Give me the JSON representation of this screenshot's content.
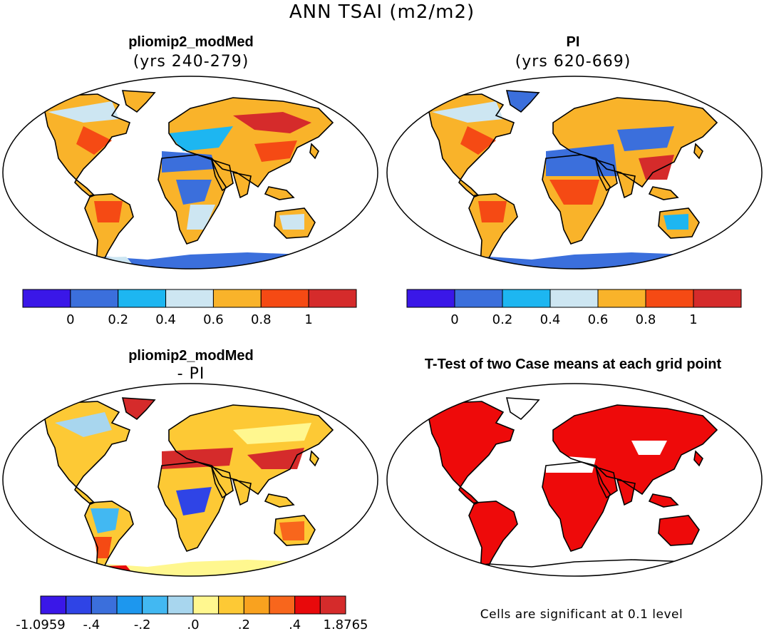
{
  "figure": {
    "main_title": "ANN TSAI (m2/m2)"
  },
  "panels": [
    {
      "id": "top-left",
      "title": "pliomip2_modMed",
      "subtitle": "(yrs 240-279)"
    },
    {
      "id": "top-right",
      "title": "PI",
      "subtitle": "(yrs 620-669)"
    },
    {
      "id": "bottom-left",
      "title": "pliomip2_modMed",
      "subtitle": "- PI"
    },
    {
      "id": "bottom-right",
      "title": "T-Test of two Case means at each grid point",
      "subtitle": ""
    }
  ],
  "colorbars": {
    "abs": {
      "colors": [
        "#3a17e8",
        "#3b6fdc",
        "#1db6f1",
        "#cde6f2",
        "#f9b32a",
        "#f54a14",
        "#d52b2b"
      ],
      "labels": [
        "0",
        "0.2",
        "0.4",
        "0.6",
        "0.8",
        "1"
      ]
    },
    "diff": {
      "colors": [
        "#3a17e8",
        "#2f44e6",
        "#3b6fdc",
        "#1d97ee",
        "#42b8f2",
        "#a8d6ee",
        "#fff78f",
        "#fdc935",
        "#f9a21f",
        "#f8661c",
        "#e8090b",
        "#d52b2b"
      ],
      "labels": [
        "-1.0959",
        "-.4",
        "-.2",
        ".0",
        ".2",
        ".4",
        "1.8765"
      ]
    }
  },
  "footnote": "Cells are significant at 0.1 level",
  "colors": {
    "land_outline": "#000000",
    "significant": "#ee0a0a"
  }
}
